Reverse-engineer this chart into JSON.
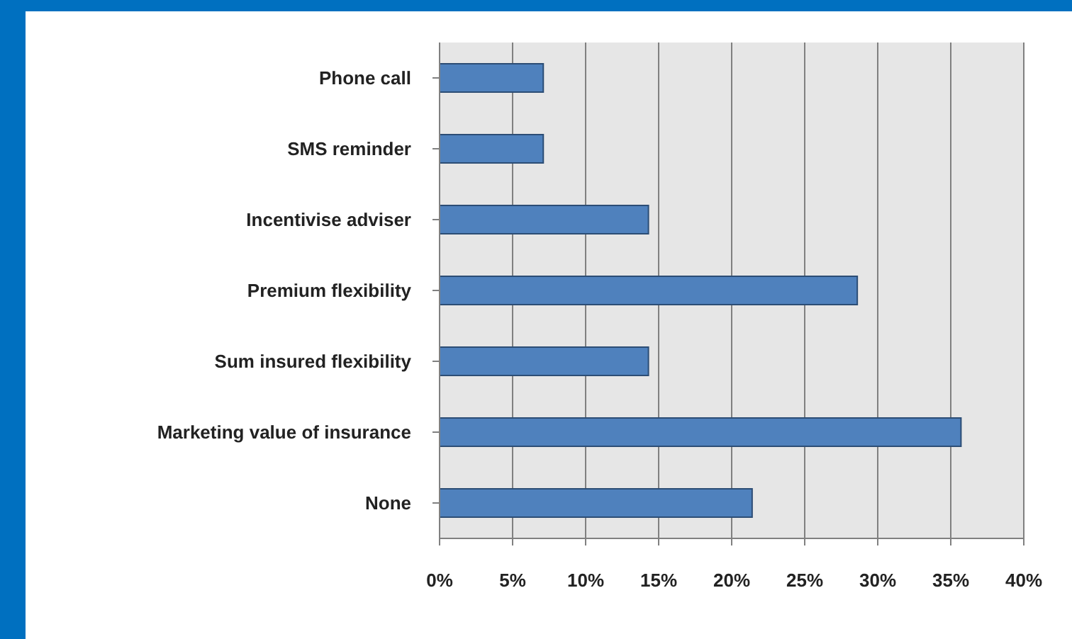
{
  "chart_data": {
    "type": "bar",
    "orientation": "horizontal",
    "categories": [
      "Phone call",
      "SMS reminder",
      "Incentivise adviser",
      "Premium flexibility",
      "Sum insured flexibility",
      "Marketing value of insurance",
      "None"
    ],
    "values": [
      7.1,
      7.1,
      14.3,
      28.6,
      14.3,
      35.7,
      21.4
    ],
    "color": "#4f81bd",
    "xlim": [
      0,
      40
    ],
    "xticks": [
      {
        "value": 0,
        "label": "0%"
      },
      {
        "value": 5,
        "label": "5%"
      },
      {
        "value": 10,
        "label": "10%"
      },
      {
        "value": 15,
        "label": "15%"
      },
      {
        "value": 20,
        "label": "20%"
      },
      {
        "value": 25,
        "label": "25%"
      },
      {
        "value": 30,
        "label": "30%"
      },
      {
        "value": 35,
        "label": "35%"
      },
      {
        "value": 40,
        "label": "40%"
      }
    ],
    "grid": "x"
  }
}
